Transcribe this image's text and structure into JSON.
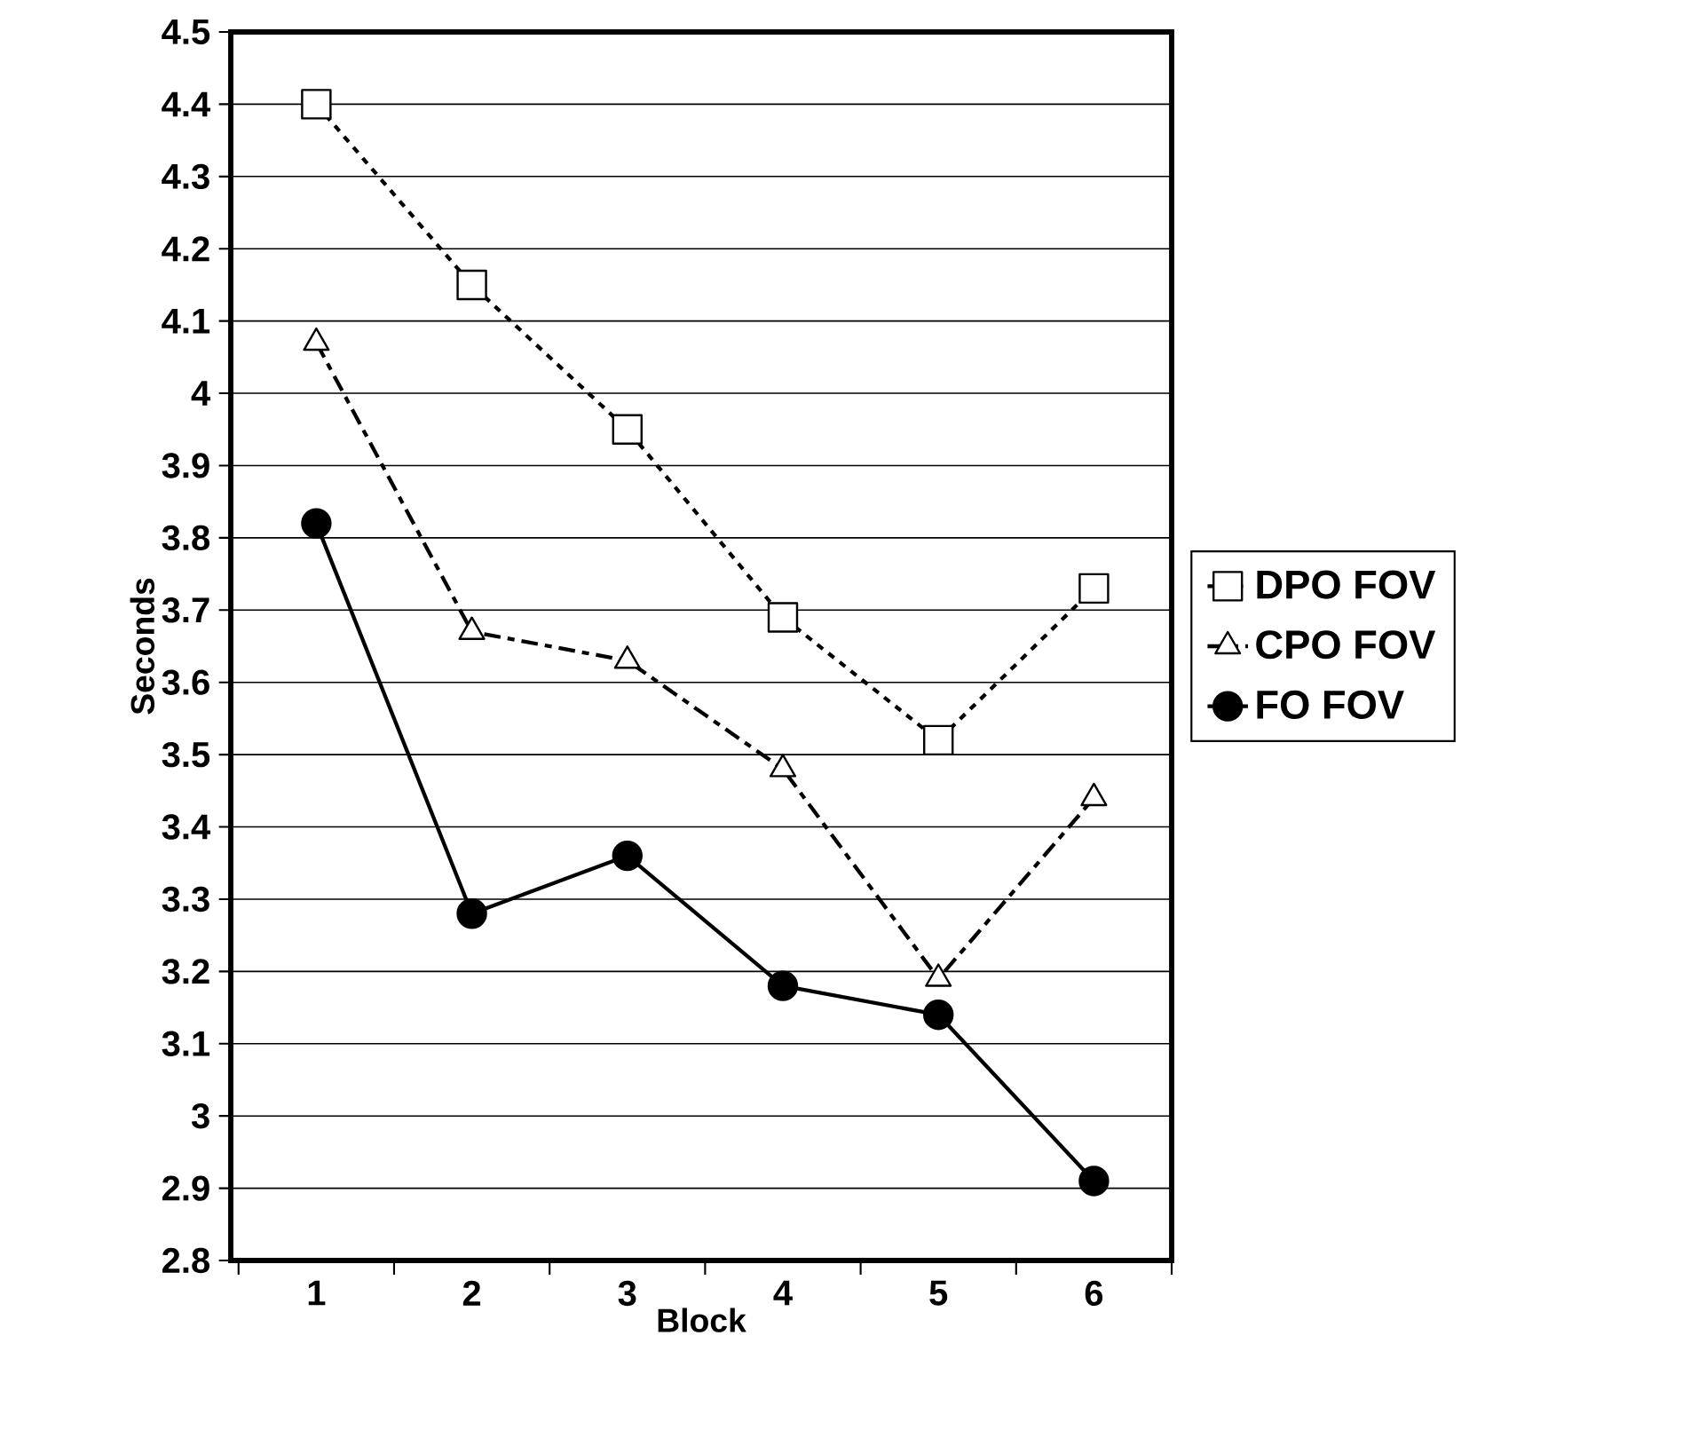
{
  "chart_data": {
    "type": "line",
    "xlabel": "Block",
    "ylabel": "Seconds",
    "categories": [
      "1",
      "2",
      "3",
      "4",
      "5",
      "6"
    ],
    "series": [
      {
        "name": "DPO FOV",
        "color": "#000000",
        "marker": "square",
        "line_style": "dotted",
        "values": [
          4.4,
          4.15,
          3.95,
          3.69,
          3.52,
          3.73
        ]
      },
      {
        "name": "CPO FOV",
        "color": "#000000",
        "marker": "triangle",
        "line_style": "dashed",
        "values": [
          4.07,
          3.67,
          3.63,
          3.48,
          3.19,
          3.44
        ]
      },
      {
        "name": "FO FOV",
        "color": "#000000",
        "marker": "circle",
        "line_style": "solid",
        "values": [
          3.82,
          3.28,
          3.36,
          3.18,
          3.14,
          2.91
        ]
      }
    ],
    "ylim": [
      2.8,
      4.5
    ],
    "yticks": [
      2.8,
      2.9,
      3,
      3.1,
      3.2,
      3.3,
      3.4,
      3.5,
      3.6,
      3.7,
      3.8,
      3.9,
      4,
      4.1,
      4.2,
      4.3,
      4.4,
      4.5
    ],
    "grid": "y",
    "legend": "right"
  }
}
